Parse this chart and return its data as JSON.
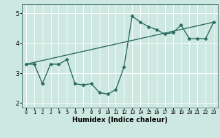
{
  "title": "",
  "xlabel": "Humidex (Indice chaleur)",
  "bg_color": "#cce8e0",
  "line_color": "#2a6b5e",
  "grid_color": "#ffffff",
  "xlim": [
    -0.5,
    23.5
  ],
  "ylim": [
    1.85,
    5.3
  ],
  "xticks": [
    0,
    1,
    2,
    3,
    4,
    5,
    6,
    7,
    8,
    9,
    10,
    11,
    12,
    13,
    14,
    15,
    16,
    17,
    18,
    19,
    20,
    21,
    22,
    23
  ],
  "yticks": [
    2,
    3,
    4,
    5
  ],
  "series1_x": [
    0,
    1,
    2,
    3,
    4,
    5,
    6,
    7,
    8,
    9,
    10,
    11,
    12,
    13,
    14,
    15,
    16,
    17,
    18,
    19,
    20,
    21,
    22,
    23
  ],
  "series1_y": [
    3.3,
    3.3,
    2.65,
    3.3,
    3.3,
    3.45,
    2.65,
    2.6,
    2.65,
    2.35,
    2.3,
    2.45,
    3.2,
    4.9,
    4.7,
    4.55,
    4.45,
    4.3,
    4.35,
    4.6,
    4.15,
    4.15,
    4.15,
    4.7
  ],
  "series2_x": [
    0,
    23
  ],
  "series2_y": [
    3.3,
    4.7
  ],
  "marker": "D",
  "markersize": 2.5,
  "linewidth": 1.0
}
